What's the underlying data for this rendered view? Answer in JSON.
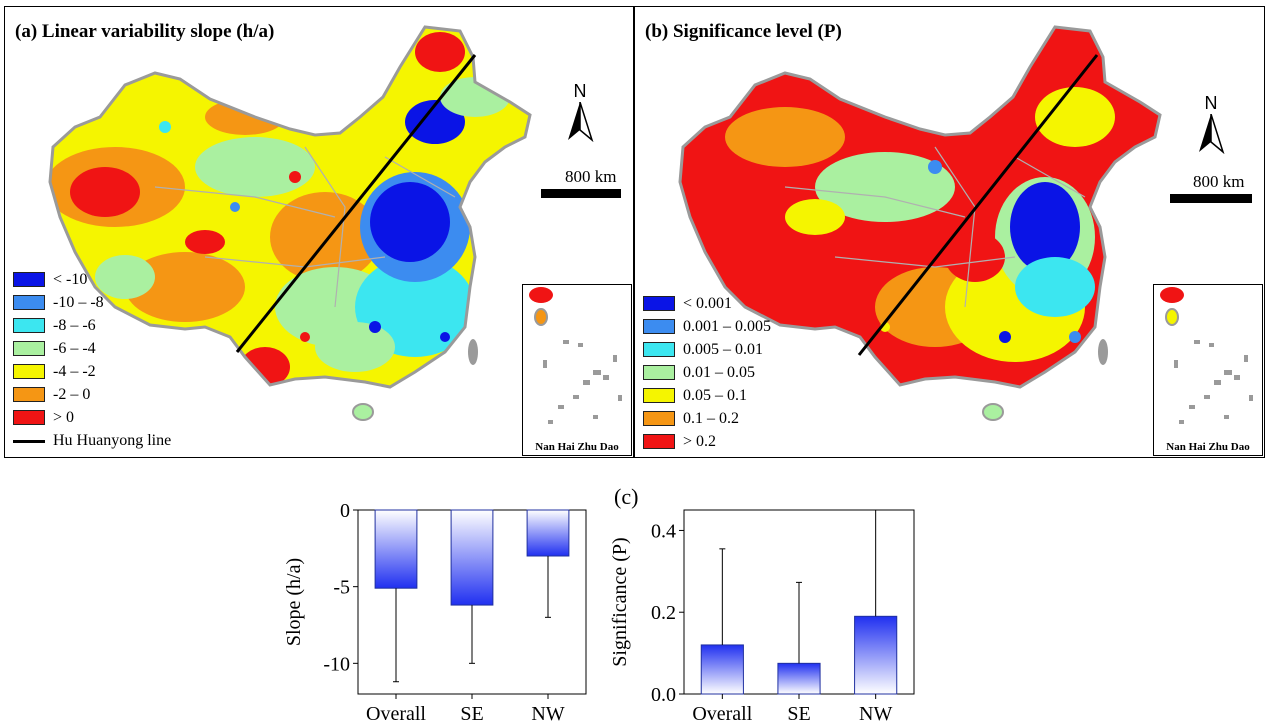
{
  "panel_a": {
    "title": "(a)  Linear variability slope (h/a)",
    "legend": [
      {
        "label": "< -10",
        "color": "#0a14e6"
      },
      {
        "label": "-10 – -8",
        "color": "#3c8cf0"
      },
      {
        "label": "-8 – -6",
        "color": "#3ce6f0"
      },
      {
        "label": "-6 – -4",
        "color": "#aaf0a0"
      },
      {
        "label": "-4 – -2",
        "color": "#f5f500"
      },
      {
        "label": "-2 – 0",
        "color": "#f59614"
      },
      {
        "label": "> 0",
        "color": "#f01414"
      }
    ],
    "line_label": "Hu Huanyong line",
    "scale_label": "800 km",
    "north_label": "N",
    "inset_label": "Nan Hai Zhu Dao"
  },
  "panel_b": {
    "title": "(b)  Significance level (P)",
    "legend": [
      {
        "label": "< 0.001",
        "color": "#0a14e6"
      },
      {
        "label": "0.001 – 0.005",
        "color": "#3c8cf0"
      },
      {
        "label": "0.005 – 0.01",
        "color": "#3ce6f0"
      },
      {
        "label": "0.01 – 0.05",
        "color": "#aaf0a0"
      },
      {
        "label": "0.05 – 0.1",
        "color": "#f5f500"
      },
      {
        "label": "0.1 – 0.2",
        "color": "#f59614"
      },
      {
        "label": "> 0.2",
        "color": "#f01414"
      }
    ],
    "scale_label": "800 km",
    "north_label": "N",
    "inset_label": "Nan Hai Zhu Dao"
  },
  "chart_data": [
    {
      "type": "bar",
      "panel_label": "",
      "categories": [
        "Overall",
        "SE",
        "NW"
      ],
      "values": [
        -5.1,
        -6.2,
        -3.0
      ],
      "error": [
        6.1,
        3.8,
        4.0
      ],
      "ylabel": "Slope (h/a)",
      "ylim": [
        -12,
        0
      ],
      "yticks": [
        0,
        -5,
        -10
      ],
      "bar_color": "#2030f0"
    },
    {
      "type": "bar",
      "panel_label": "(c)",
      "categories": [
        "Overall",
        "SE",
        "NW"
      ],
      "values": [
        0.12,
        0.075,
        0.19
      ],
      "error": [
        0.235,
        0.198,
        0.26
      ],
      "ylabel": "Significance (P)",
      "ylim": [
        0,
        0.45
      ],
      "yticks": [
        0.0,
        0.2,
        0.4
      ],
      "bar_color": "#2030f0"
    }
  ]
}
